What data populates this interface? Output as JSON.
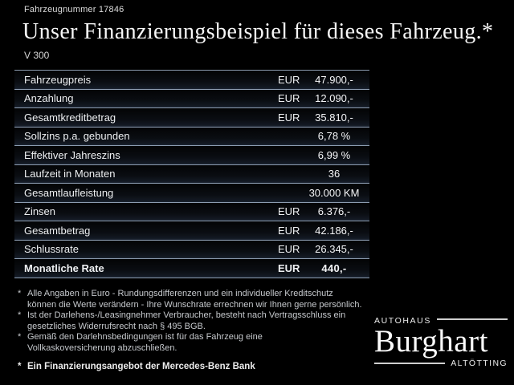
{
  "header": {
    "vehicle_number": "Fahrzeugnummer 17846",
    "title": "Unser Finanzierungsbeispiel für dieses Fahrzeug.*",
    "model": "V 300"
  },
  "table": {
    "rows": [
      {
        "label": "Fahrzeugpreis",
        "currency": "EUR",
        "value": "47.900,-"
      },
      {
        "label": "Anzahlung",
        "currency": "EUR",
        "value": "12.090,-"
      },
      {
        "label": "Gesamtkreditbetrag",
        "currency": "EUR",
        "value": "35.810,-"
      },
      {
        "label": "Sollzins p.a. gebunden",
        "currency": "",
        "value": "6,78 %"
      },
      {
        "label": "Effektiver Jahreszins",
        "currency": "",
        "value": "6,99 %"
      },
      {
        "label": "Laufzeit in Monaten",
        "currency": "",
        "value": "36"
      },
      {
        "label": "Gesamtlaufleistung",
        "currency": "",
        "value": "30.000 KM"
      },
      {
        "label": "Zinsen",
        "currency": "EUR",
        "value": "6.376,-"
      },
      {
        "label": "Gesamtbetrag",
        "currency": "EUR",
        "value": "42.186,-"
      },
      {
        "label": "Schlussrate",
        "currency": "EUR",
        "value": "26.345,-"
      },
      {
        "label": "Monatliche Rate",
        "currency": "EUR",
        "value": "440,-"
      }
    ]
  },
  "footnotes": {
    "marker": "*",
    "items": [
      {
        "lines": [
          "Alle Angaben in Euro - Rundungsdifferenzen und ein individueller Kreditschutz",
          "können die Werte verändern - Ihre Wunschrate errechnen wir Ihnen gerne persönlich."
        ]
      },
      {
        "lines": [
          "Ist der Darlehens-/Leasingnehmer Verbraucher, besteht nach Vertragsschluss ein",
          "gesetzliches Widerrufsrecht nach § 495 BGB."
        ]
      },
      {
        "lines": [
          "Gemäß den Darlehnsbedingungen ist für das Fahrzeug eine",
          "Vollkaskoversicherung abzuschließen."
        ]
      }
    ],
    "bank_note": "Ein Finanzierungsangebot der Mercedes-Benz Bank"
  },
  "logo": {
    "top": "AUTOHAUS",
    "name": "Burghart",
    "bottom": "ALTÖTTING"
  },
  "colors": {
    "background": "#000000",
    "separator_line": "#8c9cb0",
    "logo_rule": "#cfcfcf",
    "text_primary": "#f2f2f2",
    "text_footnote": "#c6c9cd"
  }
}
